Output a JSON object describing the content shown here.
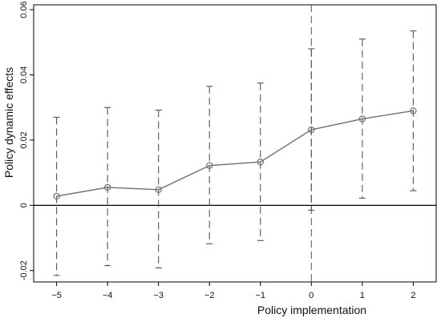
{
  "chart_data": {
    "type": "line",
    "title": "",
    "xlabel": "Policy implementation",
    "ylabel": "Policy dynamic effects",
    "x": [
      -5,
      -4,
      -3,
      -2,
      -1,
      0,
      1,
      2
    ],
    "series": [
      {
        "values": [
          0.0028,
          0.0055,
          0.0048,
          0.0122,
          0.0133,
          0.0232,
          0.0265,
          0.029
        ],
        "lower": [
          -0.0215,
          -0.0185,
          -0.0192,
          -0.0118,
          -0.0108,
          -0.0015,
          0.0022,
          0.0045
        ],
        "upper": [
          0.027,
          0.03,
          0.0292,
          0.0365,
          0.0375,
          0.048,
          0.051,
          0.0535
        ]
      }
    ],
    "xticks": [
      "−5",
      "−4",
      "−3",
      "−2",
      "−1",
      "0",
      "1",
      "2"
    ],
    "yticks": [
      {
        "value": -0.02,
        "label": "-0.02"
      },
      {
        "value": 0,
        "label": "0"
      },
      {
        "value": 0.02,
        "label": "0.02"
      },
      {
        "value": 0.04,
        "label": "0.04"
      },
      {
        "value": 0.06,
        "label": "0.06"
      }
    ],
    "xlim": [
      -5.45,
      2.45
    ],
    "ylim": [
      -0.0235,
      0.0615
    ],
    "reference_lines": {
      "horizontal_at": 0,
      "vertical_at": 0
    },
    "grid": false,
    "colors": {
      "line": "#6f6f6f",
      "ci": "#555555",
      "zero_line": "#000000",
      "vline": "#555555",
      "frame": "#000000"
    }
  }
}
